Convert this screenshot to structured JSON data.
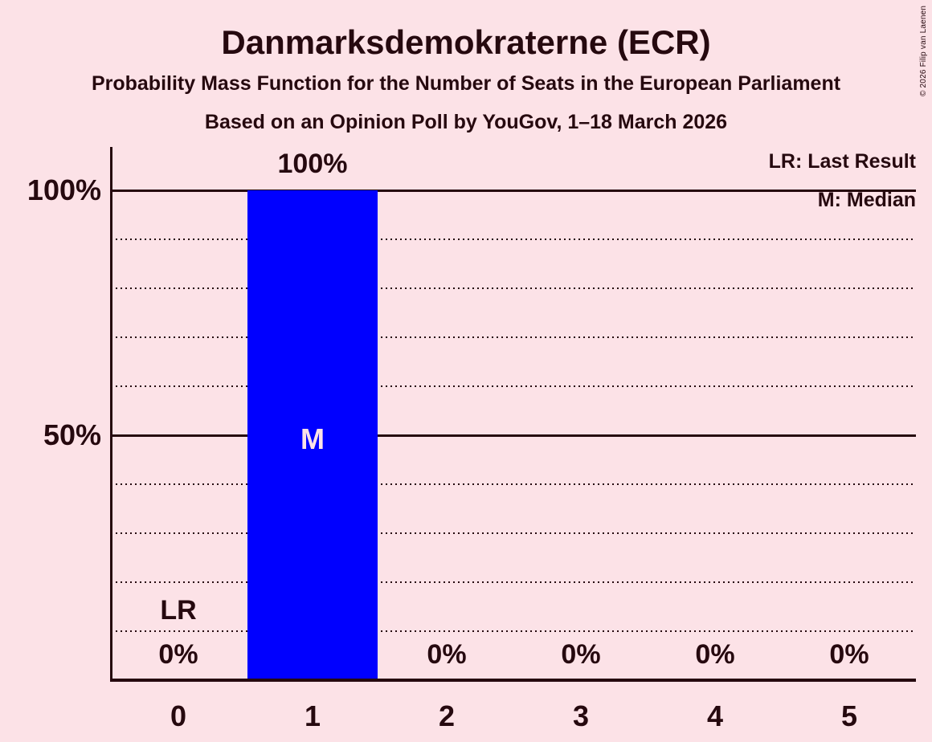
{
  "title": "Danmarksdemokraterne (ECR)",
  "subtitle": "Probability Mass Function for the Number of Seats in the European Parliament",
  "poll_info": "Based on an Opinion Poll by YouGov, 1–18 March 2026",
  "copyright": "© 2026 Filip van Laenen",
  "legend": {
    "last_result": "LR: Last Result",
    "median": "M: Median"
  },
  "colors": {
    "background": "#FCE2E7",
    "text": "#26090F",
    "bar": "#0000FF",
    "bar_label": "#FCE2E7"
  },
  "chart_data": {
    "type": "bar",
    "title": "Danmarksdemokraterne (ECR)",
    "categories": [
      "0",
      "1",
      "2",
      "3",
      "4",
      "5"
    ],
    "values": [
      0,
      100,
      0,
      0,
      0,
      0
    ],
    "value_labels": [
      "0%",
      "100%",
      "0%",
      "0%",
      "0%",
      "0%"
    ],
    "xlabel": "",
    "ylabel": "",
    "ylim": [
      0,
      100
    ],
    "yticks": [
      {
        "value": 100,
        "label": "100%"
      },
      {
        "value": 50,
        "label": "50%"
      }
    ],
    "dotted_gridline_step": 10,
    "grid": true,
    "legend_position": "top-right",
    "annotations": [
      {
        "type": "last_result",
        "category": "0",
        "label": "LR"
      },
      {
        "type": "median",
        "category": "1",
        "label": "M"
      }
    ]
  }
}
